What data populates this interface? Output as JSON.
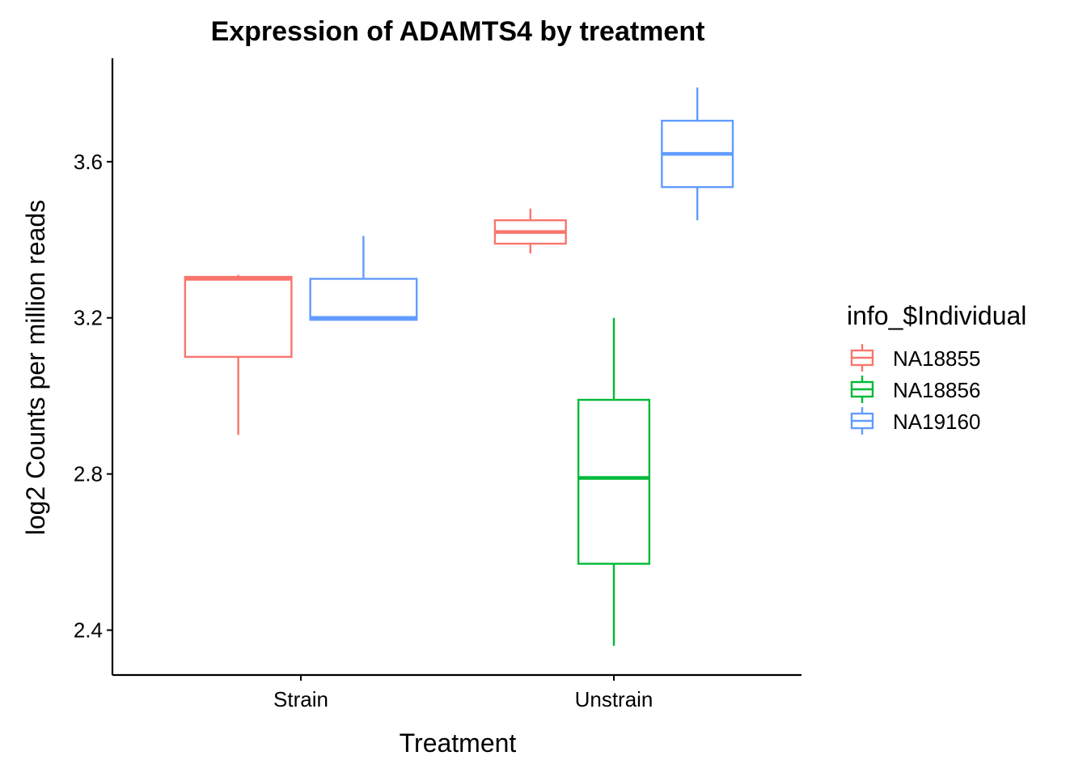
{
  "chart_data": {
    "type": "boxplot",
    "title": "Expression of ADAMTS4 by treatment",
    "xlabel": "Treatment",
    "ylabel": "log2 Counts per million reads",
    "categories": [
      "Strain",
      "Unstrain"
    ],
    "y_ticks": [
      "2.4",
      "2.8",
      "3.2",
      "3.6"
    ],
    "ylim": [
      2.285,
      3.865
    ],
    "grid": false,
    "legend": {
      "title": "info_$Individual",
      "placement": "right"
    },
    "series": [
      {
        "name": "NA18855",
        "color": "#F8766D",
        "boxes": [
          {
            "category": "Strain",
            "min": 2.9,
            "q1": 3.1,
            "median": 3.3,
            "q3": 3.305,
            "max": 3.31
          },
          {
            "category": "Unstrain",
            "min": 3.365,
            "q1": 3.39,
            "median": 3.42,
            "q3": 3.45,
            "max": 3.48
          }
        ]
      },
      {
        "name": "NA18856",
        "color": "#00BA38",
        "boxes": [
          {
            "category": "Unstrain",
            "min": 2.36,
            "q1": 2.57,
            "median": 2.79,
            "q3": 2.99,
            "max": 3.2
          }
        ]
      },
      {
        "name": "NA19160",
        "color": "#619CFF",
        "boxes": [
          {
            "category": "Strain",
            "min": 3.195,
            "q1": 3.195,
            "median": 3.2,
            "q3": 3.3,
            "max": 3.41
          },
          {
            "category": "Unstrain",
            "min": 3.45,
            "q1": 3.535,
            "median": 3.62,
            "q3": 3.705,
            "max": 3.79
          }
        ]
      }
    ]
  }
}
